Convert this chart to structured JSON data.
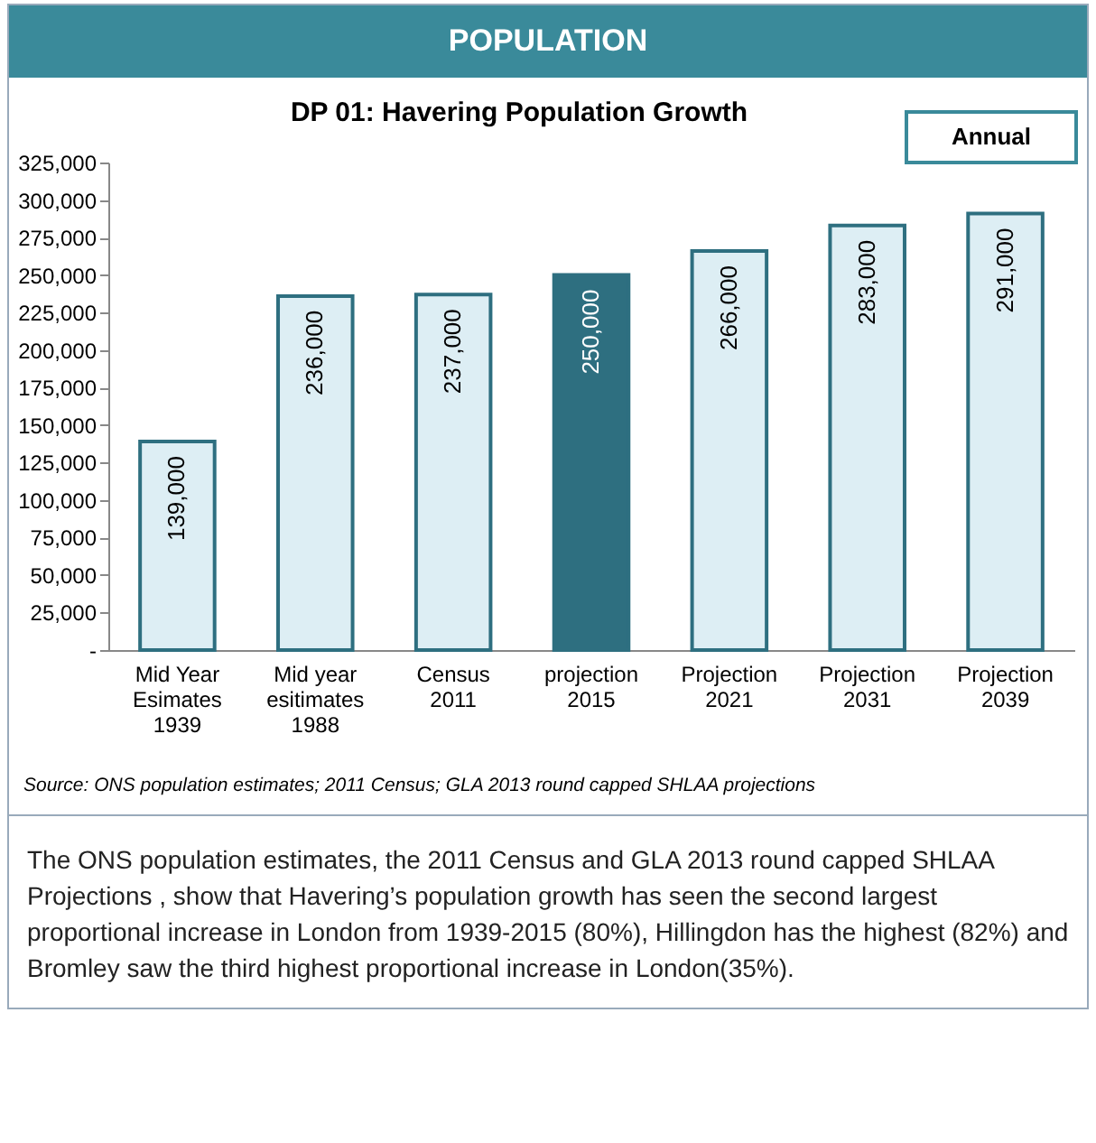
{
  "chart_data": {
    "type": "bar",
    "title": "POPULATION",
    "subtitle": "DP 01: Havering Population Growth",
    "categories": [
      "Mid Year\nEsimates\n1939",
      "Mid year\nesitimates\n1988",
      "Census\n2011",
      "projection\n2015",
      "Projection\n2021",
      "Projection\n2031",
      "Projection\n2039"
    ],
    "values": [
      139000,
      236000,
      237000,
      250000,
      266000,
      283000,
      291000
    ],
    "colors": [
      "#ddeef4",
      "#ddeef4",
      "#ddeef4",
      "#2e6f80",
      "#ddeef4",
      "#ddeef4",
      "#ddeef4"
    ],
    "ylim": [
      0,
      325000
    ],
    "yticks": [
      {
        "value": 0,
        "label": "-"
      },
      {
        "value": 25000,
        "label": "25,000"
      },
      {
        "value": 50000,
        "label": "50,000"
      },
      {
        "value": 75000,
        "label": "75,000"
      },
      {
        "value": 100000,
        "label": "100,000"
      },
      {
        "value": 125000,
        "label": "125,000"
      },
      {
        "value": 150000,
        "label": "150,000"
      },
      {
        "value": 175000,
        "label": "175,000"
      },
      {
        "value": 200000,
        "label": "200,000"
      },
      {
        "value": 225000,
        "label": "225,000"
      },
      {
        "value": 250000,
        "label": "250,000"
      },
      {
        "value": 275000,
        "label": "275,000"
      },
      {
        "value": 300000,
        "label": "300,000"
      },
      {
        "value": 325000,
        "label": "325,000"
      }
    ],
    "value_labels": [
      "139,000",
      "236,000",
      "237,000",
      "250,000",
      "266,000",
      "283,000",
      "291,000"
    ],
    "grid": false,
    "annotations": [
      "Annual",
      "Source: ONS population estimates; 2011 Census; GLA 2013 round capped SHLAA projections",
      "The ONS population estimates, the 2011 Census  and GLA 2013 round capped SHLAA  Projections , show that Havering’s population  growth has seen the second largest proportional increase in London  from 1939-2015 (80%), Hillingdon has the highest (82%) and Bromley  saw the third highest proportional  increase in London(35%)."
    ]
  }
}
